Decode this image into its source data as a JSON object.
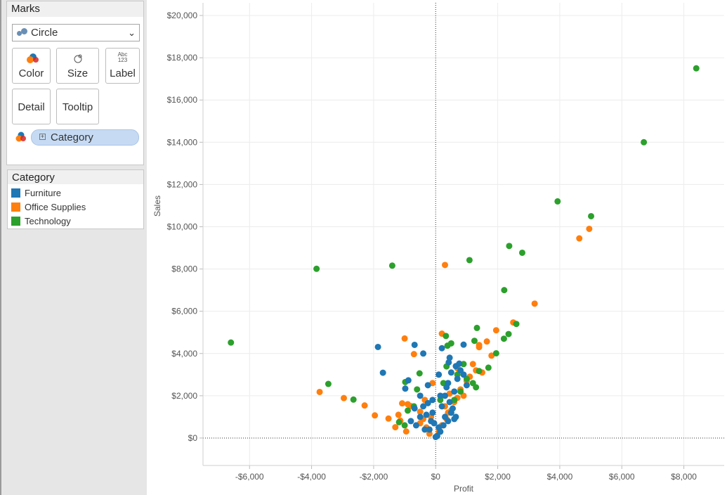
{
  "marks_card": {
    "title": "Marks",
    "mark_type": "Circle",
    "buttons": {
      "color": "Color",
      "size": "Size",
      "label": "Label",
      "label_icon_top": "Abc",
      "label_icon_bottom": "123",
      "detail": "Detail",
      "tooltip": "Tooltip"
    },
    "color_field": "Category"
  },
  "legend": {
    "title": "Category",
    "items": [
      {
        "label": "Furniture",
        "color": "#1f77b4"
      },
      {
        "label": "Office Supplies",
        "color": "#ff7f0e"
      },
      {
        "label": "Technology",
        "color": "#2ca02c"
      }
    ]
  },
  "chart_data": {
    "type": "scatter",
    "xlabel": "Profit",
    "ylabel": "Sales",
    "xlim": [
      -7500,
      9300
    ],
    "ylim": [
      -1300,
      20600
    ],
    "x_ticks": [
      -6000,
      -4000,
      -2000,
      0,
      2000,
      4000,
      6000,
      8000
    ],
    "x_tick_labels": [
      "-$6,000",
      "-$4,000",
      "-$2,000",
      "$0",
      "$2,000",
      "$4,000",
      "$6,000",
      "$8,000"
    ],
    "y_ticks": [
      0,
      2000,
      4000,
      6000,
      8000,
      10000,
      12000,
      14000,
      16000,
      18000,
      20000
    ],
    "y_tick_labels": [
      "$0",
      "$2,000",
      "$4,000",
      "$6,000",
      "$8,000",
      "$10,000",
      "$12,000",
      "$14,000",
      "$16,000",
      "$18,000",
      "$20,000"
    ],
    "grid": true,
    "zero_lines": "dotted",
    "series": [
      {
        "name": "Office Supplies",
        "color": "#ff7f0e",
        "points": [
          [
            -3740,
            2180
          ],
          [
            -2960,
            1890
          ],
          [
            -2290,
            1540
          ],
          [
            -1960,
            1070
          ],
          [
            -1520,
            920
          ],
          [
            -1300,
            510
          ],
          [
            -1140,
            820
          ],
          [
            -950,
            310
          ],
          [
            -1080,
            1640
          ],
          [
            -1000,
            4710
          ],
          [
            -700,
            3970
          ],
          [
            -800,
            1510
          ],
          [
            -500,
            1240
          ],
          [
            -400,
            900
          ],
          [
            300,
            8190
          ],
          [
            200,
            4940
          ],
          [
            400,
            1200
          ],
          [
            600,
            1700
          ],
          [
            800,
            2300
          ],
          [
            1000,
            2700
          ],
          [
            1200,
            3500
          ],
          [
            1400,
            4400
          ],
          [
            1650,
            4570
          ],
          [
            1800,
            3900
          ],
          [
            1950,
            5100
          ],
          [
            2500,
            5470
          ],
          [
            3190,
            6360
          ],
          [
            4630,
            9450
          ],
          [
            4950,
            9900
          ],
          [
            100,
            300
          ],
          [
            200,
            600
          ],
          [
            350,
            900
          ],
          [
            500,
            1300
          ],
          [
            700,
            1900
          ],
          [
            -200,
            200
          ],
          [
            -300,
            500
          ],
          [
            -150,
            1000
          ],
          [
            -500,
            700
          ],
          [
            900,
            2000
          ],
          [
            1100,
            2900
          ],
          [
            1300,
            3200
          ],
          [
            1500,
            3100
          ],
          [
            -900,
            1600
          ],
          [
            -1200,
            1100
          ],
          [
            300,
            1500
          ],
          [
            450,
            2100
          ],
          [
            700,
            3300
          ],
          [
            1400,
            4300
          ],
          [
            -100,
            2600
          ],
          [
            -350,
            1800
          ]
        ]
      },
      {
        "name": "Technology",
        "color": "#2ca02c",
        "points": [
          [
            -6600,
            4520
          ],
          [
            -3840,
            8010
          ],
          [
            -3460,
            2560
          ],
          [
            -2650,
            1820
          ],
          [
            -1400,
            8160
          ],
          [
            -980,
            2650
          ],
          [
            -1180,
            750
          ],
          [
            -520,
            3060
          ],
          [
            330,
            4830
          ],
          [
            380,
            4370
          ],
          [
            500,
            4480
          ],
          [
            1090,
            8420
          ],
          [
            1330,
            5210
          ],
          [
            1250,
            4600
          ],
          [
            2210,
            7000
          ],
          [
            2370,
            9090
          ],
          [
            2790,
            8770
          ],
          [
            3930,
            11200
          ],
          [
            5010,
            10500
          ],
          [
            6710,
            14000
          ],
          [
            8400,
            17500
          ],
          [
            2200,
            4700
          ],
          [
            2350,
            4920
          ],
          [
            2600,
            5400
          ],
          [
            1950,
            4010
          ],
          [
            1700,
            3330
          ],
          [
            1400,
            3170
          ],
          [
            1200,
            2600
          ],
          [
            900,
            3500
          ],
          [
            800,
            2200
          ],
          [
            350,
            3390
          ],
          [
            250,
            2600
          ],
          [
            700,
            3000
          ],
          [
            1000,
            2800
          ],
          [
            1300,
            2400
          ],
          [
            -700,
            1500
          ],
          [
            -900,
            1300
          ],
          [
            -1000,
            600
          ],
          [
            -600,
            2300
          ],
          [
            600,
            1800
          ],
          [
            150,
            1800
          ],
          [
            500,
            1200
          ]
        ]
      },
      {
        "name": "Furniture",
        "color": "#1f77b4",
        "points": [
          [
            -1860,
            4310
          ],
          [
            -1700,
            3090
          ],
          [
            -680,
            4410
          ],
          [
            -400,
            4000
          ],
          [
            -250,
            1650
          ],
          [
            -880,
            2730
          ],
          [
            -980,
            2340
          ],
          [
            -500,
            2000
          ],
          [
            -680,
            1400
          ],
          [
            -800,
            800
          ],
          [
            -630,
            600
          ],
          [
            -350,
            400
          ],
          [
            -250,
            2500
          ],
          [
            200,
            4250
          ],
          [
            420,
            3580
          ],
          [
            450,
            3800
          ],
          [
            900,
            4420
          ],
          [
            650,
            3400
          ],
          [
            760,
            3520
          ],
          [
            900,
            3000
          ],
          [
            1000,
            2500
          ],
          [
            100,
            3000
          ],
          [
            150,
            2000
          ],
          [
            200,
            1500
          ],
          [
            300,
            1000
          ],
          [
            400,
            800
          ],
          [
            500,
            1200
          ],
          [
            600,
            2200
          ],
          [
            700,
            2800
          ],
          [
            800,
            3200
          ],
          [
            -100,
            1200
          ],
          [
            -150,
            800
          ],
          [
            -200,
            400
          ],
          [
            -300,
            1100
          ],
          [
            -400,
            1500
          ],
          [
            -500,
            1000
          ],
          [
            50,
            100
          ],
          [
            100,
            500
          ],
          [
            150,
            300
          ],
          [
            250,
            600
          ],
          [
            350,
            2400
          ],
          [
            450,
            1700
          ],
          [
            550,
            1400
          ],
          [
            650,
            1000
          ],
          [
            0,
            50
          ],
          [
            -50,
            700
          ],
          [
            -100,
            1800
          ],
          [
            300,
            2000
          ],
          [
            400,
            2600
          ],
          [
            500,
            3100
          ],
          [
            600,
            900
          ]
        ]
      }
    ]
  }
}
